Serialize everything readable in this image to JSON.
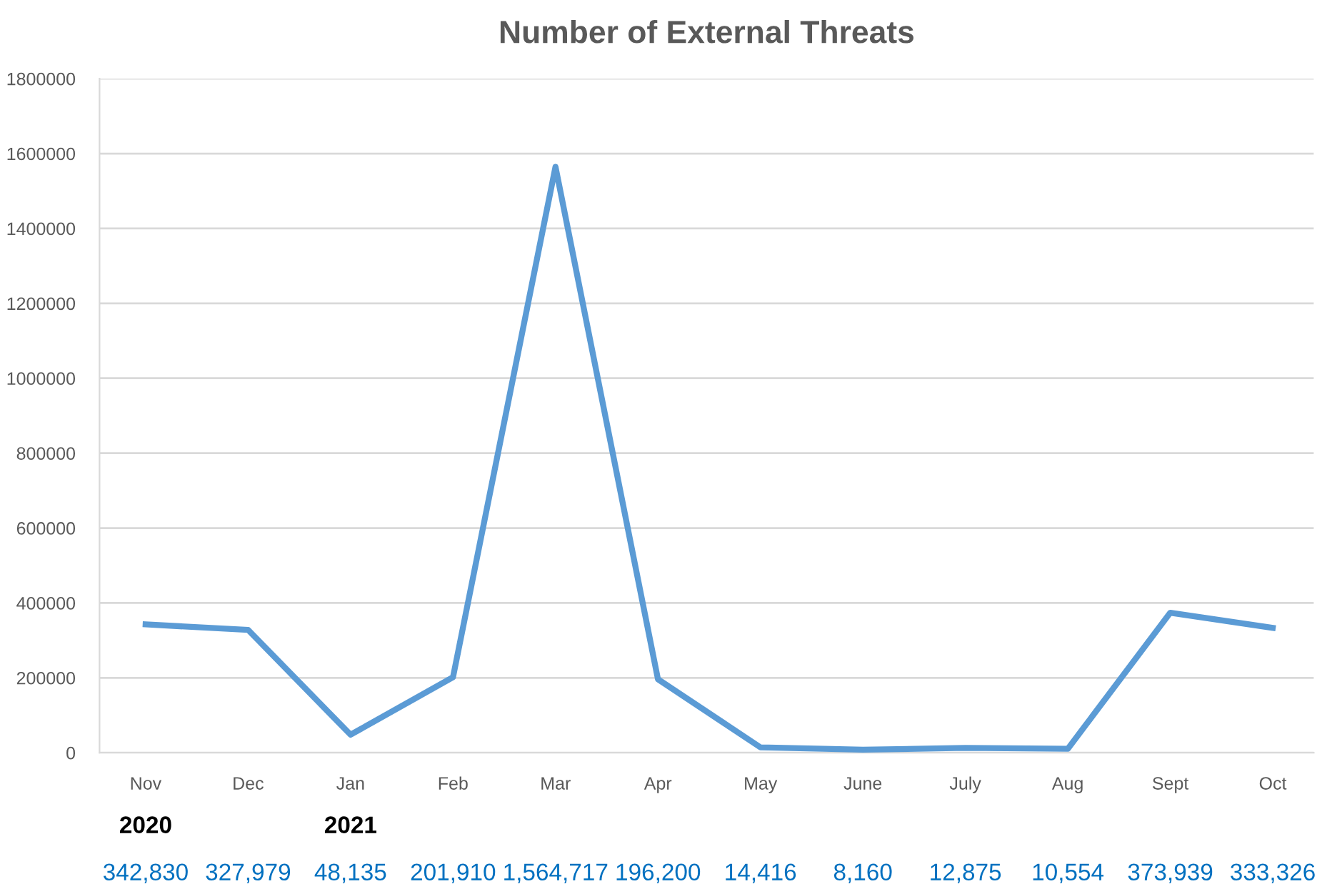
{
  "chart_data": {
    "type": "line",
    "title": "Number of External Threats",
    "categories": [
      "Nov",
      "Dec",
      "Jan",
      "Feb",
      "Mar",
      "Apr",
      "May",
      "June",
      "July",
      "Aug",
      "Sept",
      "Oct"
    ],
    "series": [
      {
        "color": "#5b9bd5",
        "values": [
          342830,
          327979,
          48135,
          201910,
          1564717,
          196200,
          14416,
          8160,
          12875,
          10554,
          373939,
          333326
        ],
        "value_labels": [
          "342,830",
          "327,979",
          "48,135",
          "201,910",
          "1,564,717",
          "196,200",
          "14,416",
          "8,160",
          "12,875",
          "10,554",
          "373,939",
          "333,326"
        ]
      }
    ],
    "annotations": [
      "2020",
      "2021"
    ],
    "ylim": [
      0,
      1800000
    ],
    "yticks": [
      0,
      200000,
      400000,
      600000,
      800000,
      1000000,
      1200000,
      1400000,
      1600000,
      1800000
    ],
    "grid": "y",
    "legend": false,
    "marker": "none",
    "line_style": "solid"
  }
}
